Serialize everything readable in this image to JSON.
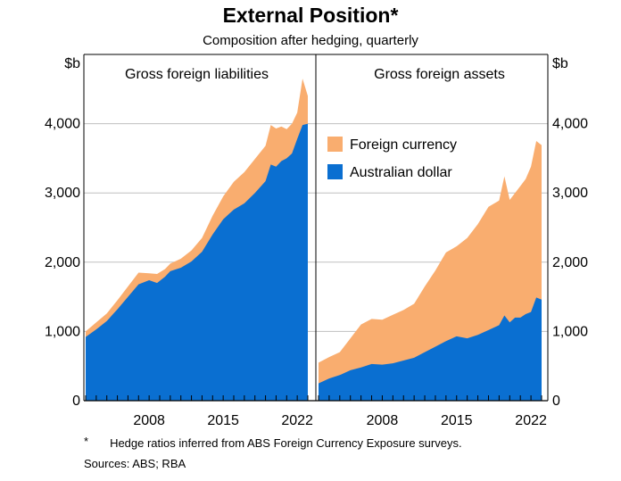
{
  "title": "External Position*",
  "subtitle": "Composition after hedging, quarterly",
  "footnote": {
    "mark": "*",
    "text": "Hedge ratios inferred from ABS Foreign Currency Exposure surveys."
  },
  "sources": "Sources: ABS; RBA",
  "colors": {
    "foreign_currency": "#F9AD6F",
    "australian_dollar": "#0A6FD1",
    "grid": "#BFBFBF",
    "frame": "#000000"
  },
  "chart_data": {
    "type": "area",
    "stacked": true,
    "unit": "$b",
    "ylim": [
      0,
      5000
    ],
    "yticks": [
      0,
      1000,
      2000,
      3000,
      4000
    ],
    "ytick_labels": [
      "0",
      "1,000",
      "2,000",
      "3,000",
      "4,000"
    ],
    "xticks": [
      2008,
      2015,
      2022
    ],
    "xlim": [
      2001.5,
      2023.25
    ],
    "legend": {
      "position": "upper-left of right panel",
      "entries": [
        "Foreign currency",
        "Australian dollar"
      ]
    },
    "panels": [
      {
        "title": "Gross foreign liabilities",
        "x": [
          2002.0,
          2003.0,
          2004.0,
          2005.0,
          2006.0,
          2007.0,
          2008.0,
          2008.75,
          2009.5,
          2010.0,
          2011.0,
          2012.0,
          2013.0,
          2014.0,
          2015.0,
          2016.0,
          2017.0,
          2018.0,
          2019.0,
          2019.5,
          2020.0,
          2020.5,
          2021.0,
          2021.5,
          2022.0,
          2022.5,
          2023.0
        ],
        "series": [
          {
            "name": "Australian dollar",
            "values": [
              920,
              1030,
              1150,
              1320,
              1500,
              1680,
              1740,
              1700,
              1790,
              1870,
              1920,
              2010,
              2150,
              2400,
              2620,
              2760,
              2850,
              3000,
              3170,
              3410,
              3380,
              3460,
              3500,
              3570,
              3780,
              3980,
              4000
            ]
          },
          {
            "name": "Foreign currency",
            "values": [
              80,
              100,
              110,
              130,
              150,
              170,
              100,
              130,
              110,
              110,
              130,
              160,
              200,
              270,
              330,
              400,
              450,
              490,
              510,
              570,
              550,
              500,
              420,
              430,
              380,
              670,
              400
            ]
          }
        ]
      },
      {
        "title": "Gross foreign assets",
        "x": [
          2002.0,
          2003.0,
          2004.0,
          2005.0,
          2006.0,
          2007.0,
          2008.0,
          2009.0,
          2010.0,
          2011.0,
          2012.0,
          2013.0,
          2014.0,
          2015.0,
          2016.0,
          2017.0,
          2018.0,
          2019.0,
          2019.5,
          2020.0,
          2020.5,
          2021.0,
          2021.5,
          2022.0,
          2022.5,
          2023.0
        ],
        "series": [
          {
            "name": "Australian dollar",
            "values": [
              250,
              320,
              370,
              440,
              480,
              530,
              520,
              540,
              580,
              620,
              700,
              780,
              860,
              930,
              900,
              950,
              1020,
              1090,
              1230,
              1130,
              1200,
              1200,
              1250,
              1280,
              1490,
              1460
            ]
          },
          {
            "name": "Foreign currency",
            "values": [
              300,
              310,
              330,
              460,
              620,
              650,
              650,
              700,
              730,
              780,
              950,
              1100,
              1280,
              1300,
              1450,
              1600,
              1780,
              1800,
              2010,
              1770,
              1800,
              1900,
              1950,
              2100,
              2260,
              2230
            ]
          }
        ]
      }
    ]
  }
}
